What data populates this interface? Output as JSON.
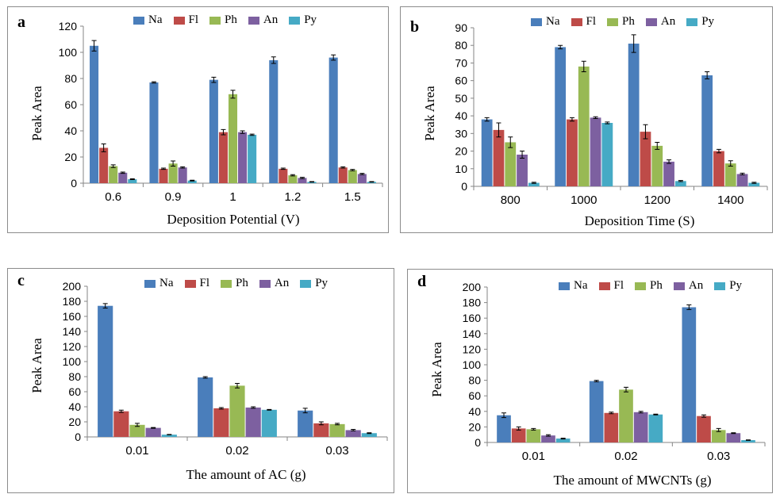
{
  "colors": {
    "Na": "#4a7ebb",
    "Fl": "#be4b48",
    "Ph": "#98b954",
    "An": "#7d60a0",
    "Py": "#46aac5"
  },
  "legend": [
    "Na",
    "Fl",
    "Ph",
    "An",
    "Py"
  ],
  "chart_data": [
    {
      "type": "bar",
      "panel": "a",
      "xlabel": "Deposition Potential (V)",
      "ylabel": "Peak Area",
      "ylim": [
        0,
        120
      ],
      "yticks": [
        0,
        20,
        40,
        60,
        80,
        100,
        120
      ],
      "categories": [
        "0.6",
        "0.9",
        "1",
        "1.2",
        "1.5"
      ],
      "series": [
        {
          "name": "Na",
          "values": [
            105,
            77,
            79,
            94,
            96
          ],
          "errors": [
            4,
            0.5,
            2,
            2.5,
            2
          ]
        },
        {
          "name": "Fl",
          "values": [
            27,
            11,
            39,
            11,
            12
          ],
          "errors": [
            3,
            0.5,
            2,
            0.5,
            0.5
          ]
        },
        {
          "name": "Ph",
          "values": [
            13,
            15,
            68,
            6,
            10
          ],
          "errors": [
            1,
            2,
            3,
            0.5,
            0.5
          ]
        },
        {
          "name": "An",
          "values": [
            8,
            12,
            39,
            4,
            7
          ],
          "errors": [
            0.5,
            0.5,
            1,
            0.5,
            0.5
          ]
        },
        {
          "name": "Py",
          "values": [
            3,
            2,
            37,
            1,
            1
          ],
          "errors": [
            0.3,
            0.3,
            0.5,
            0.2,
            0.2
          ]
        }
      ]
    },
    {
      "type": "bar",
      "panel": "b",
      "xlabel": "Deposition Time (S)",
      "ylabel": "Peak Area",
      "ylim": [
        0,
        90
      ],
      "yticks": [
        0,
        10,
        20,
        30,
        40,
        50,
        60,
        70,
        80,
        90
      ],
      "categories": [
        "800",
        "1000",
        "1200",
        "1400"
      ],
      "series": [
        {
          "name": "Na",
          "values": [
            38,
            79,
            81,
            63
          ],
          "errors": [
            1,
            1,
            5,
            2
          ]
        },
        {
          "name": "Fl",
          "values": [
            32,
            38,
            31,
            20
          ],
          "errors": [
            4,
            1,
            4,
            1
          ]
        },
        {
          "name": "Ph",
          "values": [
            25,
            68,
            23,
            13
          ],
          "errors": [
            3,
            3,
            2,
            1.5
          ]
        },
        {
          "name": "An",
          "values": [
            18,
            39,
            14,
            7
          ],
          "errors": [
            2,
            0.5,
            1,
            0.5
          ]
        },
        {
          "name": "Py",
          "values": [
            2,
            36,
            3,
            2
          ],
          "errors": [
            0.3,
            0.5,
            0.3,
            0.3
          ]
        }
      ]
    },
    {
      "type": "bar",
      "panel": "c",
      "xlabel": "The amount of AC (g)",
      "ylabel": "Peak Area",
      "ylim": [
        0,
        200
      ],
      "yticks": [
        0,
        20,
        40,
        60,
        80,
        100,
        120,
        140,
        160,
        180,
        200
      ],
      "categories": [
        "0.01",
        "0.02",
        "0.03"
      ],
      "series": [
        {
          "name": "Na",
          "values": [
            174,
            79,
            35
          ],
          "errors": [
            3,
            1,
            3
          ]
        },
        {
          "name": "Fl",
          "values": [
            34,
            38,
            18
          ],
          "errors": [
            1.5,
            1,
            2
          ]
        },
        {
          "name": "Ph",
          "values": [
            16,
            68,
            17
          ],
          "errors": [
            2,
            3,
            1
          ]
        },
        {
          "name": "An",
          "values": [
            12,
            39,
            9
          ],
          "errors": [
            0.5,
            1,
            1
          ]
        },
        {
          "name": "Py",
          "values": [
            3,
            36,
            5
          ],
          "errors": [
            0.3,
            0.5,
            0.5
          ]
        }
      ]
    },
    {
      "type": "bar",
      "panel": "d",
      "xlabel": "The amount of MWCNTs (g)",
      "ylabel": "Peak Area",
      "ylim": [
        0,
        200
      ],
      "yticks": [
        0,
        20,
        40,
        60,
        80,
        100,
        120,
        140,
        160,
        180,
        200
      ],
      "categories": [
        "0.01",
        "0.02",
        "0.03"
      ],
      "series": [
        {
          "name": "Na",
          "values": [
            35,
            79,
            174
          ],
          "errors": [
            3,
            1,
            3
          ]
        },
        {
          "name": "Fl",
          "values": [
            18,
            38,
            34
          ],
          "errors": [
            2,
            1,
            1.5
          ]
        },
        {
          "name": "Ph",
          "values": [
            17,
            68,
            16
          ],
          "errors": [
            1,
            3,
            2
          ]
        },
        {
          "name": "An",
          "values": [
            9,
            39,
            12
          ],
          "errors": [
            1,
            1,
            0.5
          ]
        },
        {
          "name": "Py",
          "values": [
            5,
            36,
            3
          ],
          "errors": [
            0.5,
            0.5,
            0.3
          ]
        }
      ]
    }
  ]
}
